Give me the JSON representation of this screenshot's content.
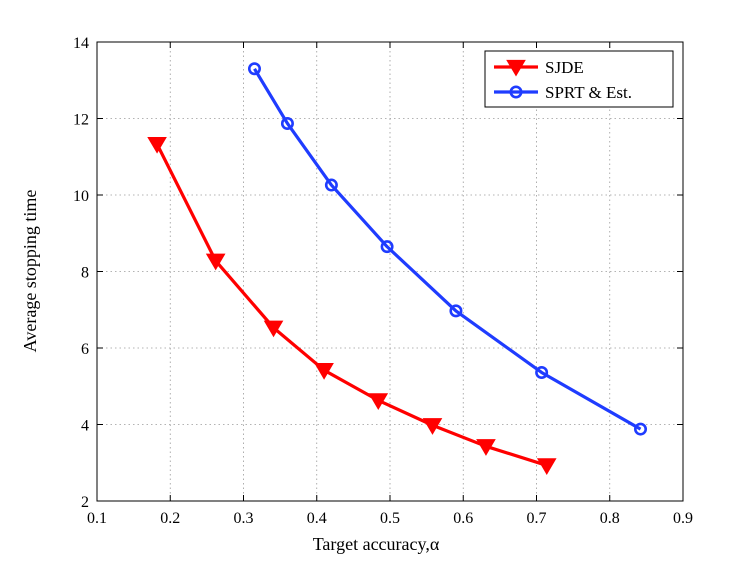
{
  "chart_data": {
    "type": "line",
    "title": "",
    "xlabel": "Target accuracy,",
    "xlabel_symbol": "α",
    "ylabel": "Average stopping time",
    "xlim": [
      0.1,
      0.9
    ],
    "ylim": [
      2,
      14
    ],
    "xticks": [
      0.1,
      0.2,
      0.3,
      0.4,
      0.5,
      0.6,
      0.7,
      0.8,
      0.9
    ],
    "yticks": [
      2,
      4,
      6,
      8,
      10,
      12,
      14
    ],
    "xtick_labels": [
      "0.1",
      "0.2",
      "0.3",
      "0.4",
      "0.5",
      "0.6",
      "0.7",
      "0.8",
      "0.9"
    ],
    "ytick_labels": [
      "2",
      "4",
      "6",
      "8",
      "10",
      "12",
      "14"
    ],
    "grid": true,
    "legend_position": "top-right",
    "series": [
      {
        "name": "SJDE",
        "color": "#ff0000",
        "marker": "triangle-down",
        "x": [
          0.182,
          0.262,
          0.341,
          0.41,
          0.484,
          0.558,
          0.631,
          0.714
        ],
        "y": [
          11.33,
          8.28,
          6.53,
          5.42,
          4.63,
          3.98,
          3.43,
          2.93
        ]
      },
      {
        "name": "SPRT & Est.",
        "color": "#1f3cff",
        "marker": "circle",
        "x": [
          0.315,
          0.36,
          0.42,
          0.496,
          0.59,
          0.707,
          0.842
        ],
        "y": [
          13.3,
          11.87,
          10.26,
          8.65,
          6.97,
          5.36,
          3.88
        ]
      }
    ]
  }
}
